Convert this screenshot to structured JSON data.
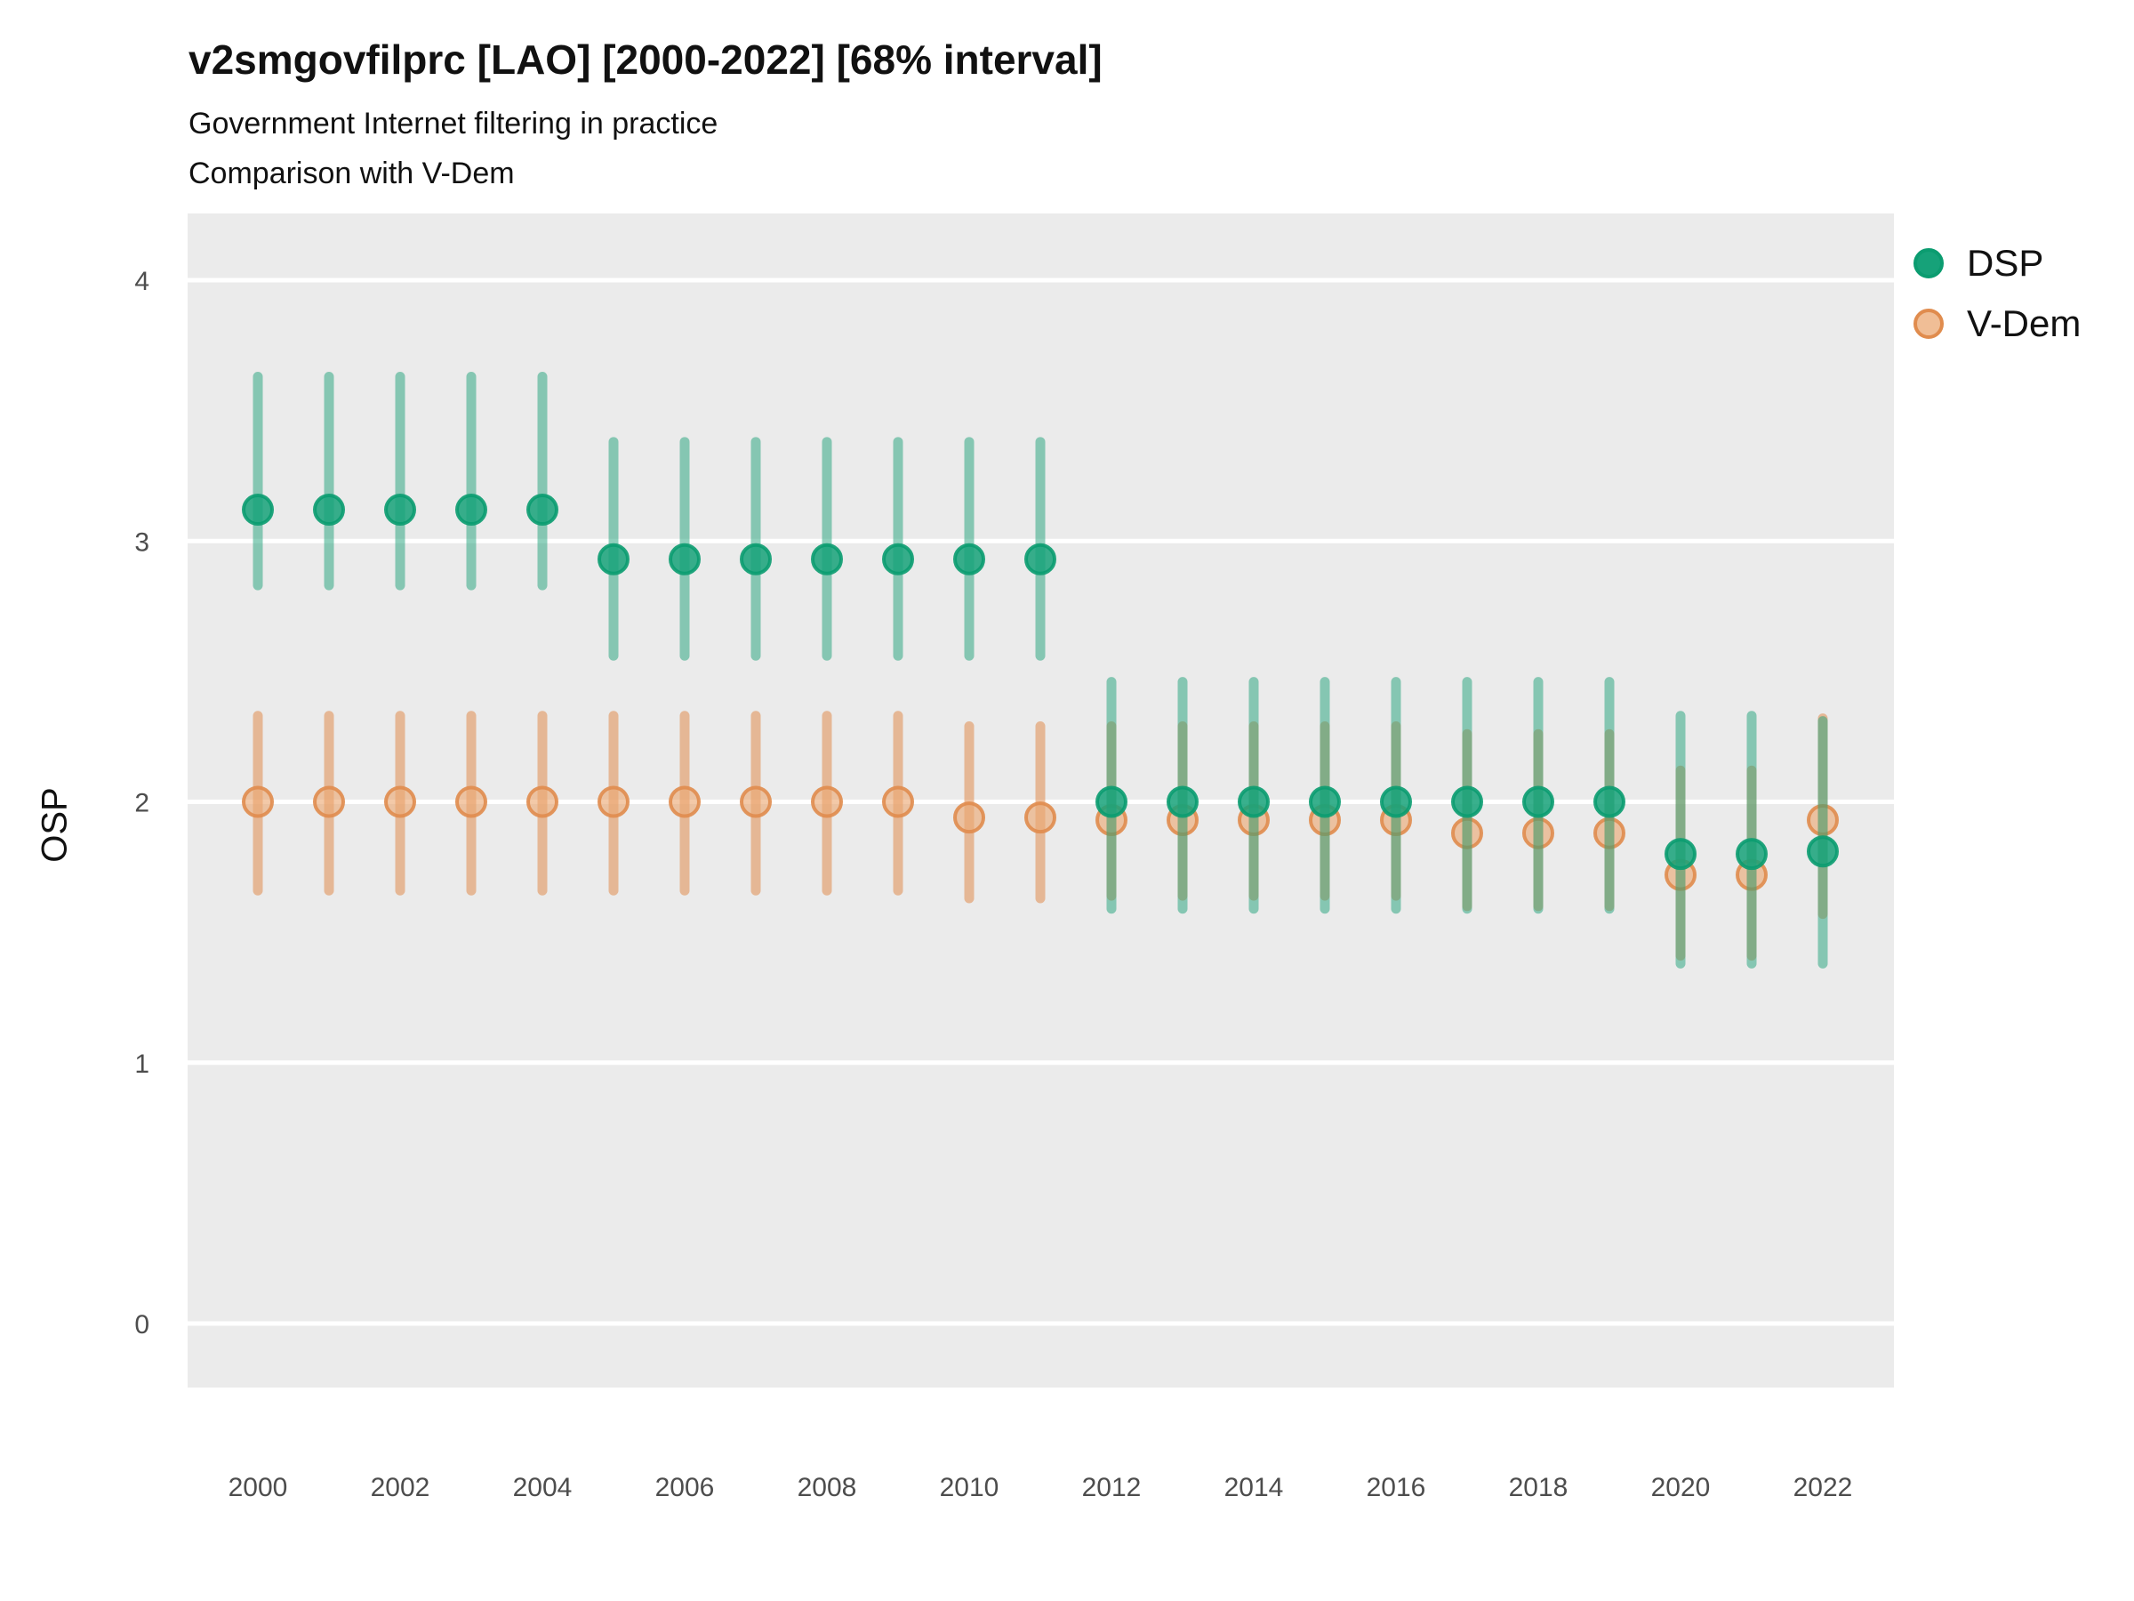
{
  "header": {
    "title": "v2smgovfilprc [LAO] [2000-2022] [68% interval]",
    "subtitle1": "Government Internet filtering in practice",
    "subtitle2": "Comparison with V-Dem"
  },
  "chart_data": {
    "type": "scatter",
    "title": "v2smgovfilprc [LAO] [2000-2022] [68% interval]",
    "subtitle": "Government Internet filtering in practice",
    "subtitle2": "Comparison with V-Dem",
    "xlabel": "",
    "ylabel": "OSP",
    "ylim": [
      -0.25,
      4.26
    ],
    "y_ticks": [
      0,
      1,
      2,
      3,
      4
    ],
    "x_ticks": [
      2000,
      2002,
      2004,
      2006,
      2008,
      2010,
      2012,
      2014,
      2016,
      2018,
      2020,
      2022
    ],
    "grid": true,
    "legend_position": "right-top",
    "colors": {
      "panel_bg": "#EBEBEB",
      "gridline": "#FFFFFF",
      "tick_text": "#4D4D4D"
    },
    "x": [
      2000,
      2001,
      2002,
      2003,
      2004,
      2005,
      2006,
      2007,
      2008,
      2009,
      2010,
      2011,
      2012,
      2013,
      2014,
      2015,
      2016,
      2017,
      2018,
      2019,
      2020,
      2021,
      2022
    ],
    "series": [
      {
        "name": "V-Dem",
        "dot_color": "#EBA873",
        "dot_opacity": 0.62,
        "ring_color": "#E08C4E",
        "bar_color": "#E08C4E",
        "bar_opacity": 0.55,
        "est": [
          2.0,
          2.0,
          2.0,
          2.0,
          2.0,
          2.0,
          2.0,
          2.0,
          2.0,
          2.0,
          1.94,
          1.94,
          1.93,
          1.93,
          1.93,
          1.93,
          1.93,
          1.88,
          1.88,
          1.88,
          1.72,
          1.72,
          1.93
        ],
        "lo": [
          1.66,
          1.66,
          1.66,
          1.66,
          1.66,
          1.66,
          1.66,
          1.66,
          1.66,
          1.66,
          1.63,
          1.63,
          1.64,
          1.64,
          1.64,
          1.64,
          1.64,
          1.6,
          1.6,
          1.6,
          1.41,
          1.41,
          1.57
        ],
        "hi": [
          2.33,
          2.33,
          2.33,
          2.33,
          2.33,
          2.33,
          2.33,
          2.33,
          2.33,
          2.33,
          2.29,
          2.29,
          2.29,
          2.29,
          2.29,
          2.29,
          2.29,
          2.26,
          2.26,
          2.26,
          2.12,
          2.12,
          2.32
        ]
      },
      {
        "name": "DSP",
        "dot_color": "#16A279",
        "dot_opacity": 0.85,
        "ring_color": "#0B9C70",
        "bar_color": "#1FA17A",
        "bar_opacity": 0.5,
        "est": [
          3.12,
          3.12,
          3.12,
          3.12,
          3.12,
          2.93,
          2.93,
          2.93,
          2.93,
          2.93,
          2.93,
          2.93,
          2.0,
          2.0,
          2.0,
          2.0,
          2.0,
          2.0,
          2.0,
          2.0,
          1.8,
          1.8,
          1.81
        ],
        "lo": [
          2.83,
          2.83,
          2.83,
          2.83,
          2.83,
          2.56,
          2.56,
          2.56,
          2.56,
          2.56,
          2.56,
          2.56,
          1.59,
          1.59,
          1.59,
          1.59,
          1.59,
          1.59,
          1.59,
          1.59,
          1.38,
          1.38,
          1.38
        ],
        "hi": [
          3.63,
          3.63,
          3.63,
          3.63,
          3.63,
          3.38,
          3.38,
          3.38,
          3.38,
          3.38,
          3.38,
          3.38,
          2.46,
          2.46,
          2.46,
          2.46,
          2.46,
          2.46,
          2.46,
          2.46,
          2.33,
          2.33,
          2.31
        ]
      }
    ],
    "legend": [
      "DSP",
      "V-Dem"
    ]
  }
}
